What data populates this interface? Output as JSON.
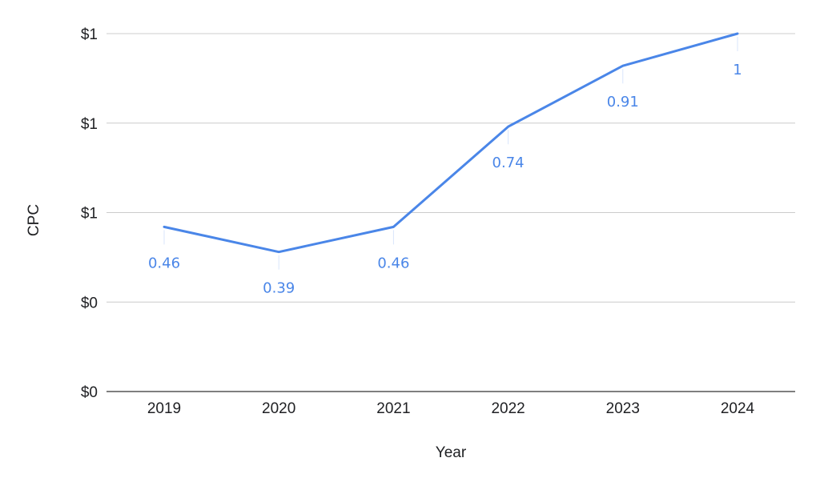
{
  "chart_data": {
    "type": "line",
    "title": "",
    "xlabel": "Year",
    "ylabel": "CPC",
    "categories": [
      "2019",
      "2020",
      "2021",
      "2022",
      "2023",
      "2024"
    ],
    "series": [
      {
        "values": [
          0.46,
          0.39,
          0.46,
          0.74,
          0.91,
          1
        ],
        "labels": [
          "0.46",
          "0.39",
          "0.46",
          "0.74",
          "0.91",
          "1"
        ],
        "color": "#4a86e8"
      }
    ],
    "ylim": [
      0,
      1
    ],
    "yticks": [
      0,
      0.25,
      0.5,
      0.75,
      1
    ],
    "ytick_labels": [
      "$0",
      "$0",
      "$1",
      "$1",
      "$1"
    ],
    "grid": true,
    "legend": "none",
    "colors": {
      "line": "#4a86e8",
      "grid": "#cccccc",
      "axis": "#333333",
      "text": "#202124"
    }
  }
}
